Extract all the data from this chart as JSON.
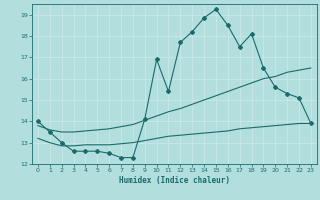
{
  "xlabel": "Humidex (Indice chaleur)",
  "xlim": [
    -0.5,
    23.5
  ],
  "ylim": [
    12,
    19.5
  ],
  "yticks": [
    12,
    13,
    14,
    15,
    16,
    17,
    18,
    19
  ],
  "xticks": [
    0,
    1,
    2,
    3,
    4,
    5,
    6,
    7,
    8,
    9,
    10,
    11,
    12,
    13,
    14,
    15,
    16,
    17,
    18,
    19,
    20,
    21,
    22,
    23
  ],
  "bg_color": "#b2dede",
  "grid_color": "#c8e8e8",
  "line_color": "#1a6b6b",
  "line1_x": [
    0,
    1,
    2,
    3,
    4,
    5,
    6,
    7,
    8,
    9,
    10,
    11,
    12,
    13,
    14,
    15,
    16,
    17,
    18,
    19,
    20,
    21,
    22,
    23
  ],
  "line1_y": [
    14.0,
    13.5,
    13.0,
    12.6,
    12.6,
    12.6,
    12.5,
    12.3,
    12.3,
    14.1,
    16.9,
    15.4,
    17.7,
    18.2,
    18.85,
    19.25,
    18.5,
    17.5,
    18.1,
    16.5,
    15.6,
    15.3,
    15.1,
    13.9
  ],
  "line2_x": [
    0,
    1,
    2,
    3,
    4,
    5,
    6,
    7,
    8,
    9,
    10,
    11,
    12,
    13,
    14,
    15,
    16,
    17,
    18,
    19,
    20,
    21,
    22,
    23
  ],
  "line2_y": [
    13.8,
    13.6,
    13.5,
    13.5,
    13.55,
    13.6,
    13.65,
    13.75,
    13.85,
    14.05,
    14.25,
    14.45,
    14.6,
    14.8,
    15.0,
    15.2,
    15.4,
    15.6,
    15.8,
    16.0,
    16.1,
    16.3,
    16.4,
    16.5
  ],
  "line3_x": [
    0,
    1,
    2,
    3,
    4,
    5,
    6,
    7,
    8,
    9,
    10,
    11,
    12,
    13,
    14,
    15,
    16,
    17,
    18,
    19,
    20,
    21,
    22,
    23
  ],
  "line3_y": [
    13.2,
    13.0,
    12.85,
    12.85,
    12.9,
    12.9,
    12.9,
    12.95,
    13.0,
    13.1,
    13.2,
    13.3,
    13.35,
    13.4,
    13.45,
    13.5,
    13.55,
    13.65,
    13.7,
    13.75,
    13.8,
    13.85,
    13.9,
    13.9
  ]
}
